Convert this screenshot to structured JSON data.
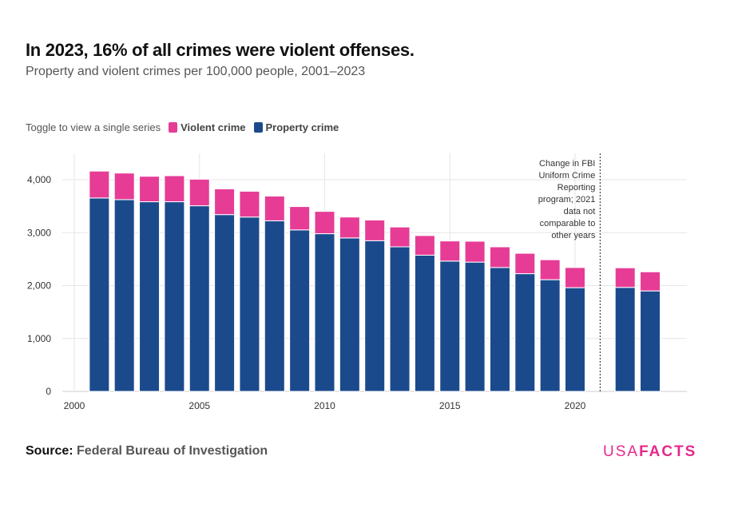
{
  "title": "In 2023, 16% of all crimes were violent offenses.",
  "subtitle": "Property and violent crimes per 100,000 people, 2001–2023",
  "legend": {
    "prompt": "Toggle to view a single series",
    "items": [
      {
        "label": "Violent crime",
        "color": "#E63C96"
      },
      {
        "label": "Property crime",
        "color": "#1B4A8C"
      }
    ]
  },
  "source": {
    "label": "Source:",
    "text": "Federal Bureau of Investigation"
  },
  "logo": {
    "part1": "USA",
    "part2": "FACTS",
    "color": "#E6288C"
  },
  "chart_data": {
    "type": "bar",
    "stacked": true,
    "x": [
      2001,
      2002,
      2003,
      2004,
      2005,
      2006,
      2007,
      2008,
      2009,
      2010,
      2011,
      2012,
      2013,
      2014,
      2015,
      2016,
      2017,
      2018,
      2019,
      2020,
      2022,
      2023
    ],
    "series": [
      {
        "name": "Property crime",
        "color": "#1B4A8C",
        "values": [
          3655,
          3624,
          3584,
          3584,
          3508,
          3341,
          3295,
          3224,
          3052,
          2980,
          2900,
          2848,
          2732,
          2574,
          2463,
          2443,
          2341,
          2225,
          2111,
          1960,
          1966,
          1899
        ]
      },
      {
        "name": "Violent crime",
        "color": "#E63C96",
        "values": [
          508,
          502,
          481,
          492,
          502,
          486,
          487,
          467,
          441,
          422,
          395,
          391,
          375,
          371,
          380,
          395,
          391,
          385,
          377,
          381,
          370,
          361
        ]
      }
    ],
    "xlim": [
      1999.5,
      2024.5
    ],
    "ylim": [
      0,
      4500
    ],
    "xticks": [
      "2000",
      "2005",
      "2010",
      "2015",
      "2020"
    ],
    "yticks": [
      "0",
      "1,000",
      "2,000",
      "3,000",
      "4,000"
    ],
    "grid": true,
    "annotation": {
      "x": 2021,
      "lines": [
        "Change in FBI",
        "Uniform Crime",
        "Reporting",
        "program; 2021",
        "data not",
        "comparable to",
        "other years"
      ]
    }
  }
}
